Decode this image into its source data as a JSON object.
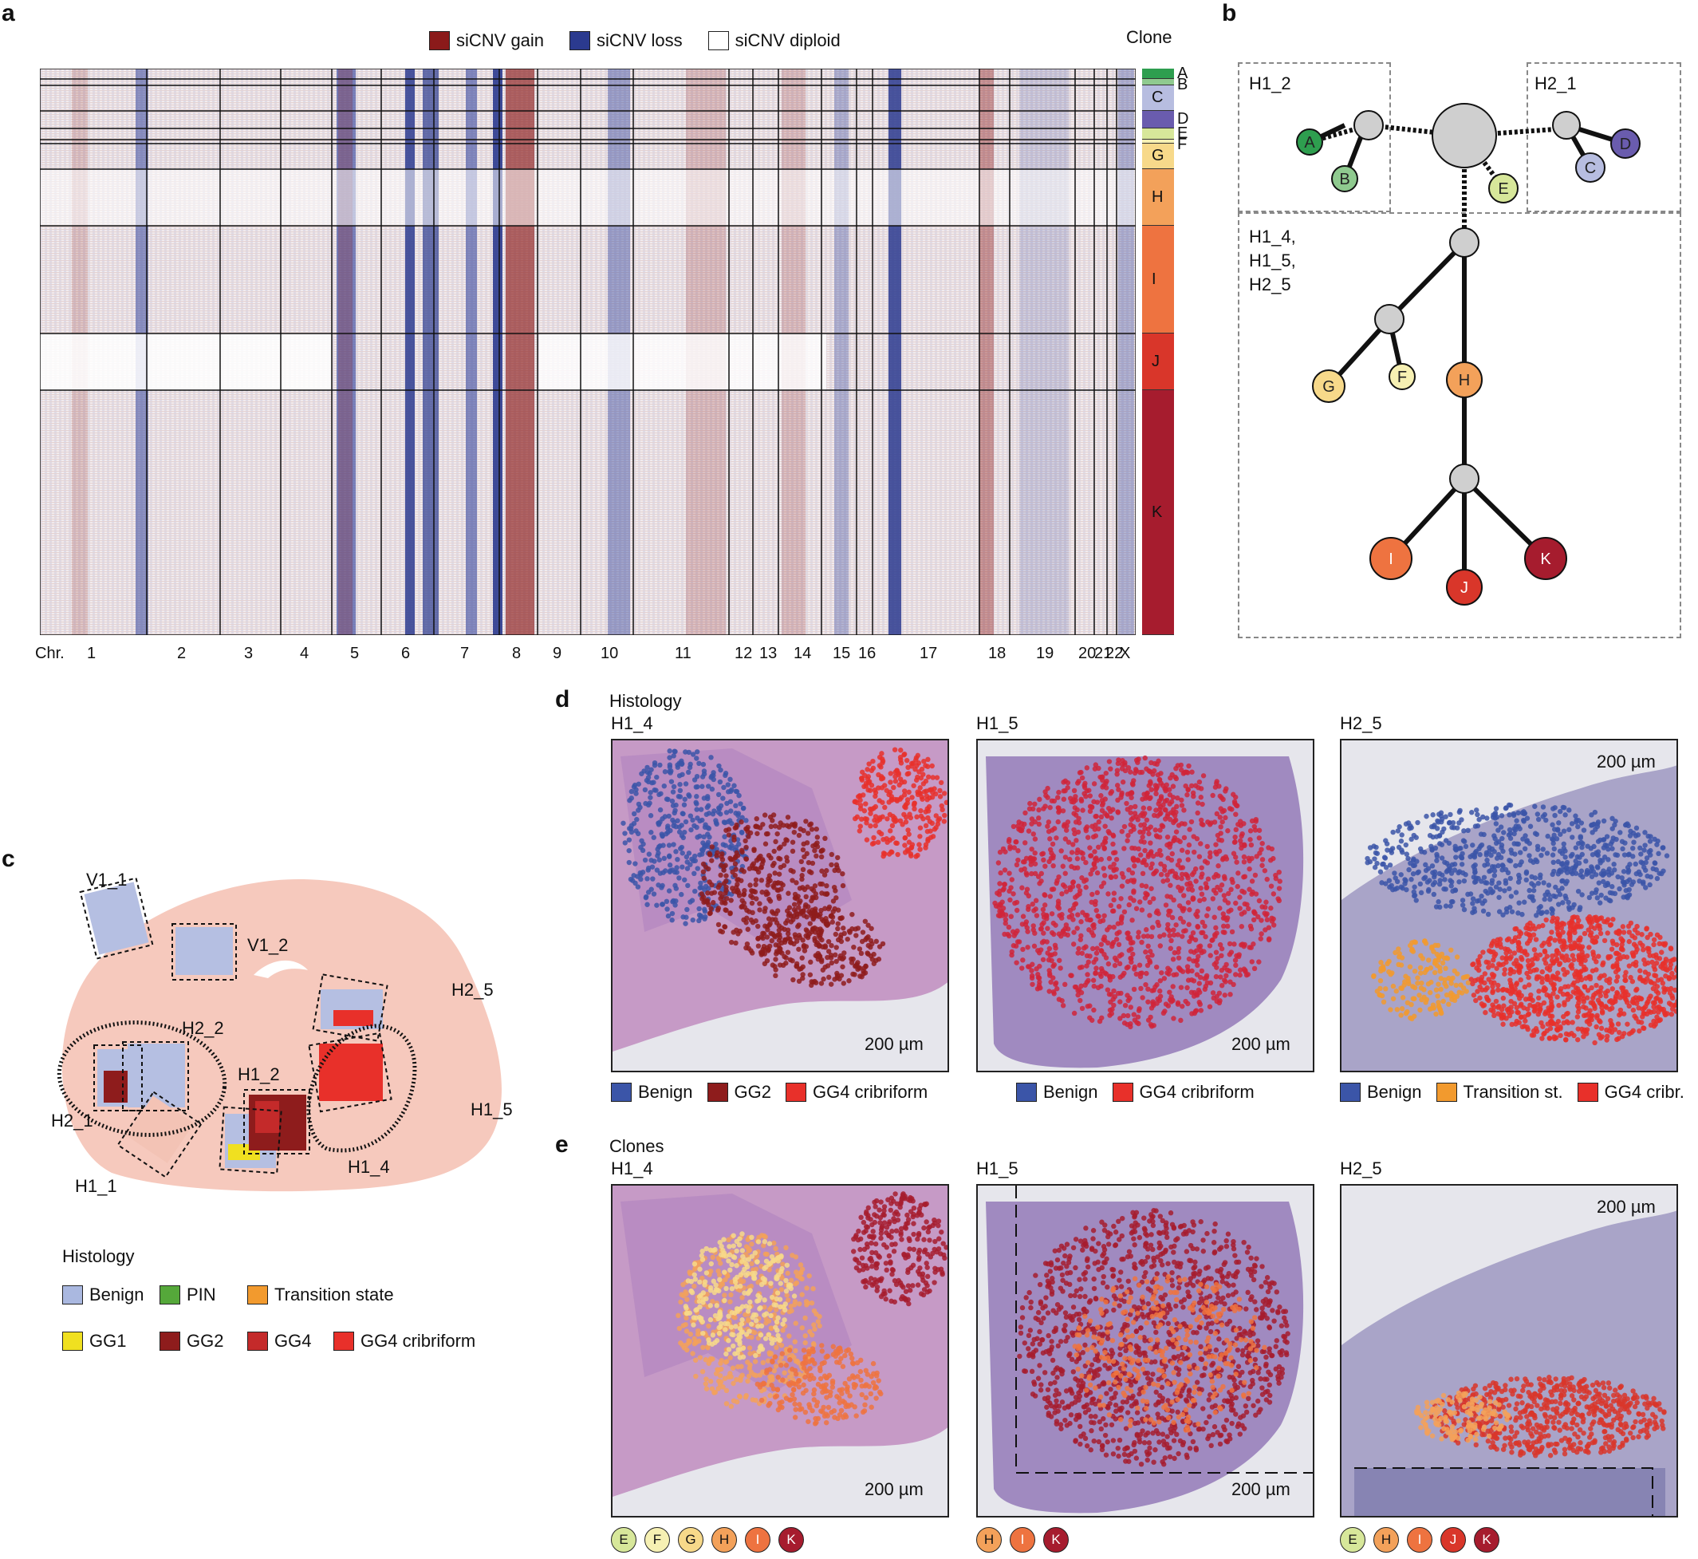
{
  "panels": {
    "a": "a",
    "b": "b",
    "c": "c",
    "d": "d",
    "e": "e"
  },
  "heatmap": {
    "legend": [
      {
        "label": "siCNV gain",
        "color": "#8b1a1a"
      },
      {
        "label": "siCNV loss",
        "color": "#2b3a8f"
      },
      {
        "label": "siCNV diploid",
        "color": "#ffffff"
      }
    ],
    "clone_header": "Clone",
    "chr_prefix": "Chr.",
    "chromosomes": [
      "1",
      "2",
      "3",
      "4",
      "5",
      "6",
      "7",
      "8",
      "9",
      "10",
      "11",
      "12",
      "13",
      "14",
      "15",
      "16",
      "17",
      "18",
      "19",
      "20",
      "21",
      "22",
      "X"
    ],
    "clones": [
      {
        "id": "A",
        "color": "#2e9e4f",
        "frac": 0.018
      },
      {
        "id": "B",
        "color": "#8fca8f",
        "frac": 0.012
      },
      {
        "id": "C",
        "color": "#b7bde0",
        "frac": 0.045
      },
      {
        "id": "D",
        "color": "#6a5cae",
        "frac": 0.03
      },
      {
        "id": "E",
        "color": "#d7e79a",
        "frac": 0.02
      },
      {
        "id": "F",
        "color": "#f6f0b3",
        "frac": 0.008
      },
      {
        "id": "G",
        "color": "#f7d98a",
        "frac": 0.045
      },
      {
        "id": "H",
        "color": "#f3a15a",
        "frac": 0.1
      },
      {
        "id": "I",
        "color": "#ee7340",
        "frac": 0.19
      },
      {
        "id": "J",
        "color": "#d9362a",
        "frac": 0.1
      },
      {
        "id": "K",
        "color": "#a61c2e",
        "frac": 0.432
      }
    ]
  },
  "tree": {
    "box_labels": [
      "H1_2",
      "H2_1",
      "H1_4,",
      "H1_5,",
      "H2_5"
    ],
    "nodes": [
      {
        "id": "A",
        "color": "#2e9e4f"
      },
      {
        "id": "B",
        "color": "#8fca8f"
      },
      {
        "id": "C",
        "color": "#b7bde0"
      },
      {
        "id": "D",
        "color": "#6a5cae"
      },
      {
        "id": "E",
        "color": "#d7e79a"
      },
      {
        "id": "F",
        "color": "#f6f0b3"
      },
      {
        "id": "G",
        "color": "#f7d98a"
      },
      {
        "id": "H",
        "color": "#f3a15a"
      },
      {
        "id": "I",
        "color": "#ee7340"
      },
      {
        "id": "J",
        "color": "#d9362a"
      },
      {
        "id": "K",
        "color": "#a61c2e"
      }
    ]
  },
  "overview": {
    "section_labels": [
      "V1_1",
      "V1_2",
      "H2_5",
      "H2_2",
      "H1_2",
      "H2_1",
      "H1_5",
      "H1_4",
      "H1_1"
    ],
    "histology_title": "Histology",
    "histology_legend": [
      {
        "label": "Benign",
        "color": "#aab8e0"
      },
      {
        "label": "PIN",
        "color": "#55a83a"
      },
      {
        "label": "Transition state",
        "color": "#f29a2e"
      },
      {
        "label": "GG1",
        "color": "#f0e020"
      },
      {
        "label": "GG2",
        "color": "#8e1c1c"
      },
      {
        "label": "GG4",
        "color": "#c42a2a"
      },
      {
        "label": "GG4 cribriform",
        "color": "#e8302a"
      }
    ]
  },
  "histology": {
    "title": "Histology",
    "samples": [
      "H1_4",
      "H1_5",
      "H2_5"
    ],
    "scale": "200 µm",
    "legends": [
      [
        {
          "label": "Benign",
          "color": "#3b55a8"
        },
        {
          "label": "GG2",
          "color": "#8e1c1c"
        },
        {
          "label": "GG4 cribriform",
          "color": "#e8302a"
        }
      ],
      [
        {
          "label": "Benign",
          "color": "#3b55a8"
        },
        {
          "label": "GG4 cribriform",
          "color": "#e8302a"
        }
      ],
      [
        {
          "label": "Benign",
          "color": "#3b55a8"
        },
        {
          "label": "Transition st.",
          "color": "#f29a2e"
        },
        {
          "label": "GG4 cribr.",
          "color": "#e8302a"
        }
      ]
    ]
  },
  "clones_panel": {
    "title": "Clones",
    "samples": [
      "H1_4",
      "H1_5",
      "H2_5"
    ],
    "scale": "200 µm",
    "legends": [
      [
        {
          "id": "E",
          "color": "#d7e79a"
        },
        {
          "id": "F",
          "color": "#f6f0b3"
        },
        {
          "id": "G",
          "color": "#f7d98a"
        },
        {
          "id": "H",
          "color": "#f3a15a"
        },
        {
          "id": "I",
          "color": "#ee7340"
        },
        {
          "id": "K",
          "color": "#a61c2e"
        }
      ],
      [
        {
          "id": "H",
          "color": "#f3a15a"
        },
        {
          "id": "I",
          "color": "#ee7340"
        },
        {
          "id": "K",
          "color": "#a61c2e"
        }
      ],
      [
        {
          "id": "E",
          "color": "#d7e79a"
        },
        {
          "id": "H",
          "color": "#f3a15a"
        },
        {
          "id": "I",
          "color": "#ee7340"
        },
        {
          "id": "J",
          "color": "#d9362a"
        },
        {
          "id": "K",
          "color": "#a61c2e"
        }
      ]
    ]
  }
}
